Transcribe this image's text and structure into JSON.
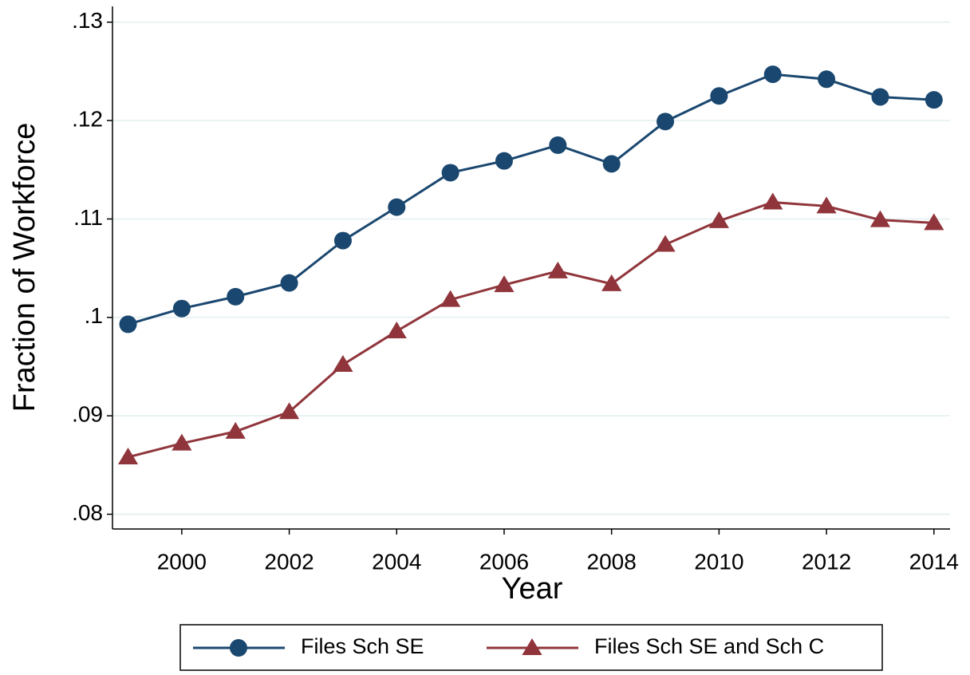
{
  "chart_data": {
    "type": "line",
    "x_label": "Year",
    "y_label": "Fraction of Workforce",
    "x": [
      1999,
      2000,
      2001,
      2002,
      2003,
      2004,
      2005,
      2006,
      2007,
      2008,
      2009,
      2010,
      2011,
      2012,
      2013,
      2014
    ],
    "series": [
      {
        "name": "Files Sch SE",
        "color": "#1a476f",
        "marker": "circle",
        "values": [
          0.0993,
          0.1009,
          0.1021,
          0.1035,
          0.1078,
          0.1112,
          0.1147,
          0.1159,
          0.1175,
          0.1156,
          0.1199,
          0.1225,
          0.1247,
          0.1242,
          0.1224,
          0.1221
        ]
      },
      {
        "name": "Files Sch SE and Sch C",
        "color": "#90353b",
        "marker": "triangle",
        "values": [
          0.0858,
          0.0872,
          0.0884,
          0.0904,
          0.0952,
          0.0986,
          0.1018,
          0.1033,
          0.1047,
          0.1034,
          0.1074,
          0.1098,
          0.1117,
          0.1113,
          0.1099,
          0.1096
        ]
      }
    ],
    "xlim": [
      1998.71,
      2014.3
    ],
    "xticks": [
      2000,
      2002,
      2004,
      2006,
      2008,
      2010,
      2012,
      2014
    ],
    "ylim": [
      0.0785,
      0.1316
    ],
    "yticks": [
      {
        "value": 0.08,
        "label": ".08"
      },
      {
        "value": 0.09,
        "label": ".09"
      },
      {
        "value": 0.1,
        "label": ".1"
      },
      {
        "value": 0.11,
        "label": ".11"
      },
      {
        "value": 0.12,
        "label": ".12"
      },
      {
        "value": 0.13,
        "label": ".13"
      }
    ],
    "grid": true,
    "legend": "bottom"
  }
}
